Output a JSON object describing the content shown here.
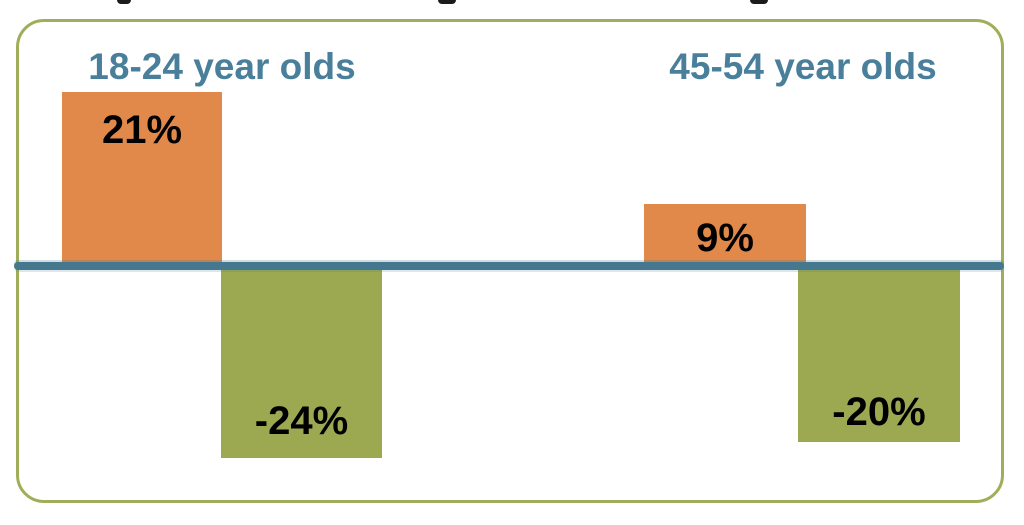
{
  "colors": {
    "bar_positive": "#E0894A",
    "bar_negative": "#9CA951",
    "axis_line": "#45788F",
    "frame_border": "#9FAE58",
    "group_label_text": "#4A7F9B",
    "value_label_text": "#000000"
  },
  "groups": [
    {
      "label": "18-24 year olds",
      "positive_label": "21%",
      "negative_label": "-24%"
    },
    {
      "label": "45-54 year olds",
      "positive_label": "9%",
      "negative_label": "-20%"
    }
  ],
  "chart_data": {
    "type": "bar",
    "categories": [
      "18-24 year olds",
      "45-54 year olds"
    ],
    "series": [
      {
        "name": "positive",
        "color": "#E0894A",
        "values": [
          21,
          9
        ]
      },
      {
        "name": "negative",
        "color": "#9CA951",
        "values": [
          -24,
          -20
        ]
      }
    ],
    "data_labels": {
      "positive": [
        "21%",
        "9%"
      ],
      "negative": [
        "-24%",
        "-20%"
      ]
    },
    "xlabel": "",
    "ylabel": "",
    "ylim": [
      -26,
      24
    ],
    "baseline": 0,
    "grid": false,
    "legend": false,
    "label_position": "inside-bar"
  }
}
